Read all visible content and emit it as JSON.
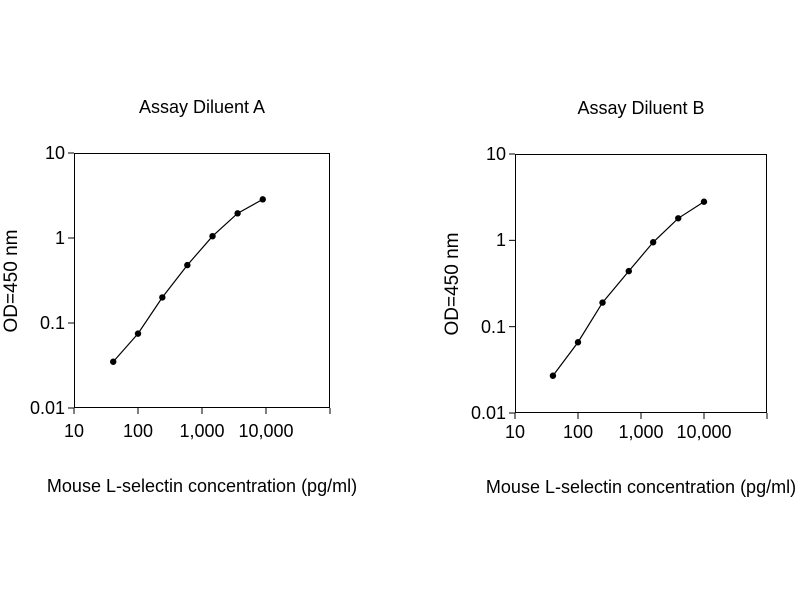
{
  "page": {
    "background": "#ffffff",
    "foreground": "#000000"
  },
  "chart_data": [
    {
      "type": "line",
      "title": "Assay Diluent A",
      "xlabel": "Mouse L-selectin concentration (pg/ml)",
      "ylabel": "OD=450 nm",
      "x_scale": "log",
      "y_scale": "log",
      "xlim": [
        10,
        100000
      ],
      "ylim": [
        0.01,
        10
      ],
      "x_ticks": [
        10,
        100,
        1000,
        10000,
        100000
      ],
      "y_ticks": [
        10,
        1,
        0.1,
        0.01
      ],
      "x_tick_labels": [
        "10",
        "100",
        "1,000",
        "10,000"
      ],
      "y_tick_labels": [
        "10",
        "1",
        "0.1",
        "0.01"
      ],
      "x": [
        41,
        100,
        240,
        590,
        1460,
        3600,
        8900
      ],
      "y": [
        0.035,
        0.075,
        0.2,
        0.48,
        1.05,
        1.95,
        2.85
      ],
      "marker": "filled-circle",
      "marker_radius": 3.2,
      "line_color": "#000000",
      "grid": "off",
      "legend": "none"
    },
    {
      "type": "line",
      "title": "Assay Diluent B",
      "xlabel": "Mouse L-selectin concentration (pg/ml)",
      "ylabel": "OD=450 nm",
      "x_scale": "log",
      "y_scale": "log",
      "xlim": [
        10,
        100000
      ],
      "ylim": [
        0.01,
        10
      ],
      "x_ticks": [
        10,
        100,
        1000,
        10000,
        100000
      ],
      "y_ticks": [
        10,
        1,
        0.1,
        0.01
      ],
      "x_tick_labels": [
        "10",
        "100",
        "1,000",
        "10,000"
      ],
      "y_tick_labels": [
        "10",
        "1",
        "0.1",
        "0.01"
      ],
      "x": [
        40,
        100,
        245,
        640,
        1560,
        3900,
        10000
      ],
      "y": [
        0.027,
        0.066,
        0.19,
        0.44,
        0.95,
        1.8,
        2.8
      ],
      "marker": "filled-circle",
      "marker_radius": 3.2,
      "line_color": "#000000",
      "grid": "off",
      "legend": "none"
    }
  ]
}
